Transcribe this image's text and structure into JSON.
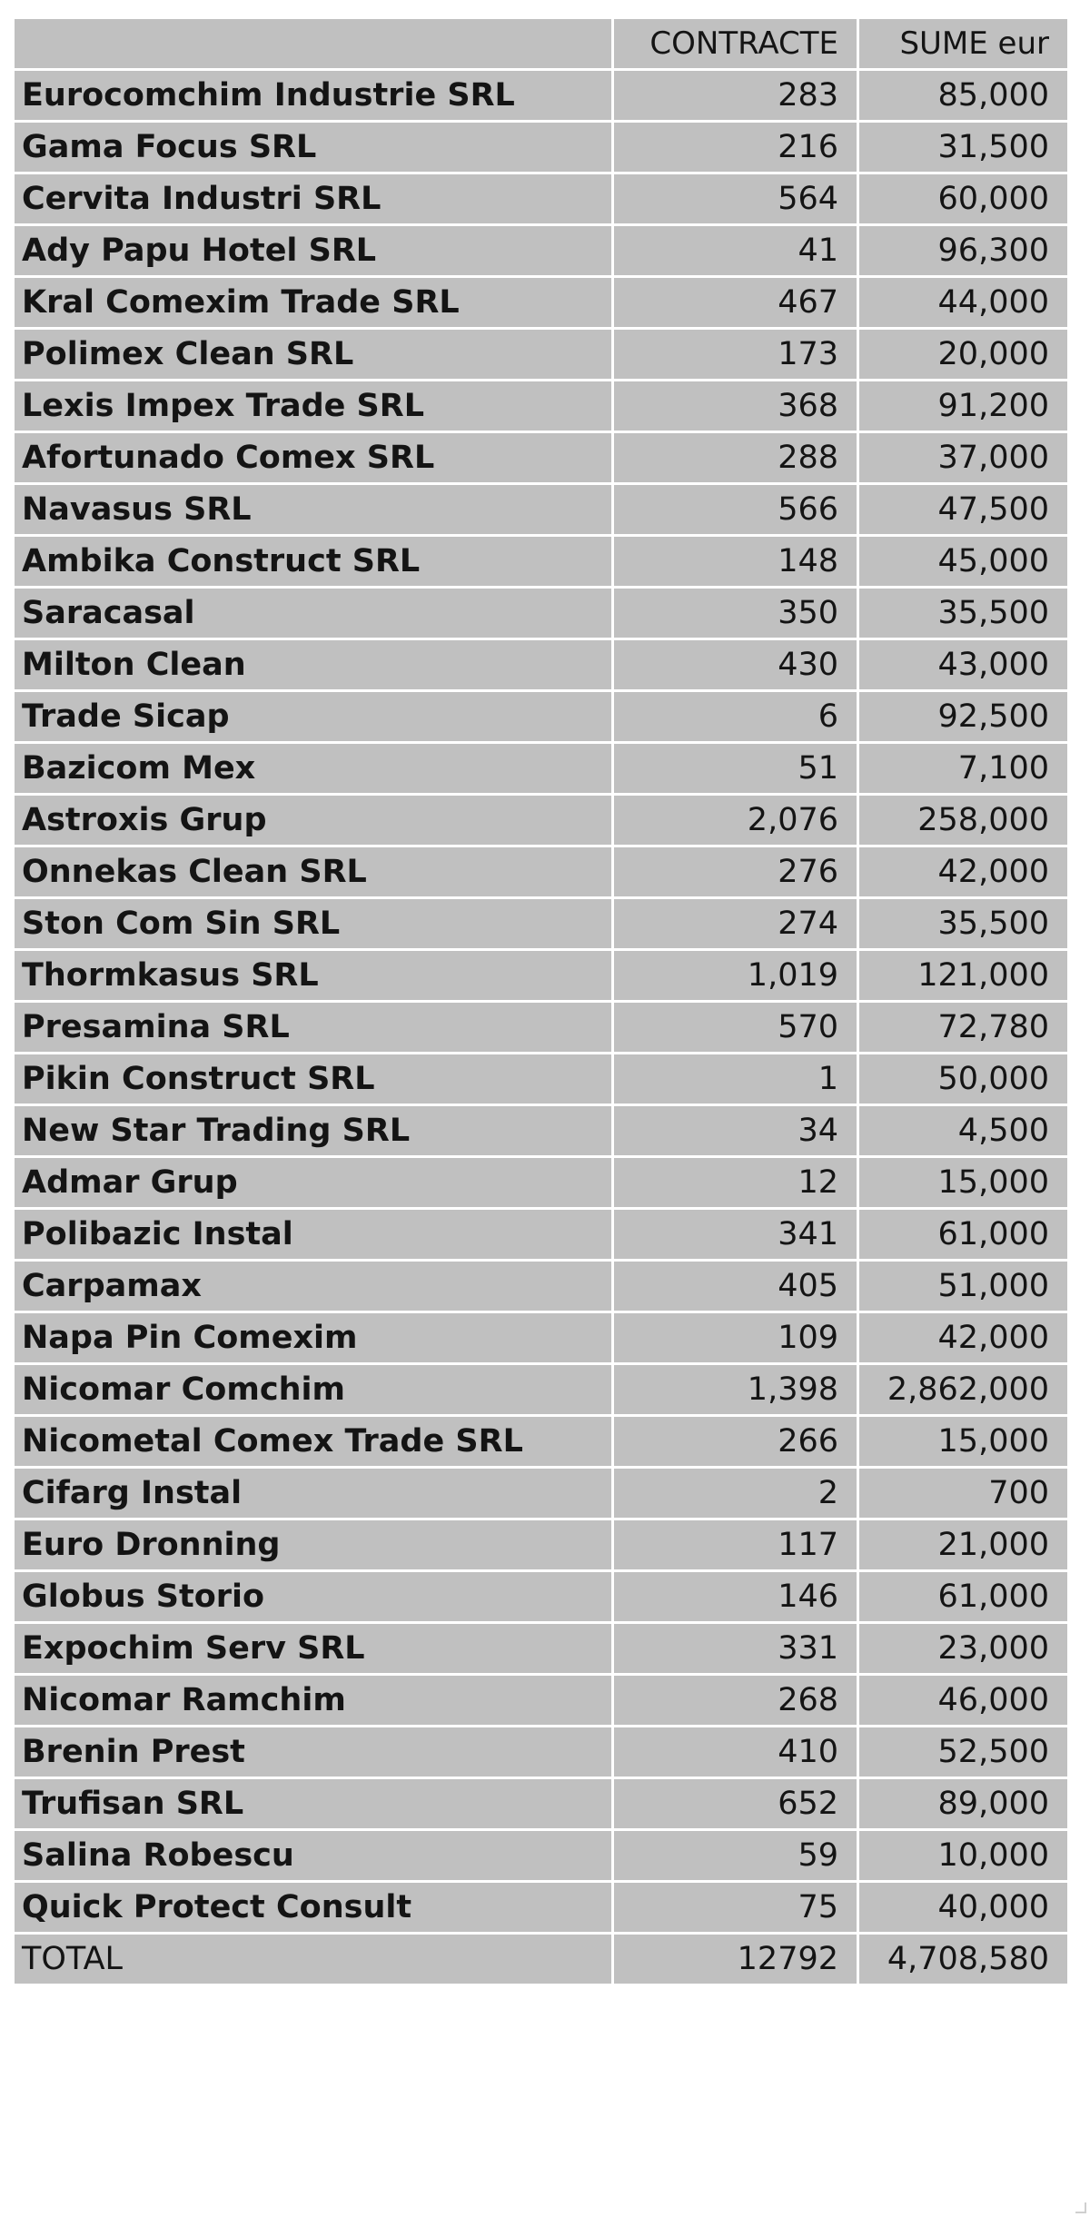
{
  "table": {
    "headers": {
      "name": "",
      "contracts": "CONTRACTE",
      "sums": "SUME eur"
    },
    "rows": [
      {
        "name": "Eurocomchim Industrie SRL",
        "contracts": "283",
        "sums": "85,000"
      },
      {
        "name": "Gama Focus SRL",
        "contracts": "216",
        "sums": "31,500"
      },
      {
        "name": "Cervita Industri SRL",
        "contracts": "564",
        "sums": "60,000"
      },
      {
        "name": "Ady Papu Hotel SRL",
        "contracts": "41",
        "sums": "96,300"
      },
      {
        "name": "Kral Comexim Trade SRL",
        "contracts": "467",
        "sums": "44,000"
      },
      {
        "name": "Polimex Clean SRL",
        "contracts": "173",
        "sums": "20,000"
      },
      {
        "name": "Lexis Impex Trade SRL",
        "contracts": "368",
        "sums": "91,200"
      },
      {
        "name": "Afortunado Comex SRL",
        "contracts": "288",
        "sums": "37,000"
      },
      {
        "name": "Navasus SRL",
        "contracts": "566",
        "sums": "47,500"
      },
      {
        "name": "Ambika Construct SRL",
        "contracts": "148",
        "sums": "45,000"
      },
      {
        "name": "Saracasal",
        "contracts": "350",
        "sums": "35,500"
      },
      {
        "name": "Milton Clean",
        "contracts": "430",
        "sums": "43,000"
      },
      {
        "name": "Trade Sicap",
        "contracts": "6",
        "sums": "92,500"
      },
      {
        "name": "Bazicom Mex",
        "contracts": "51",
        "sums": "7,100"
      },
      {
        "name": "Astroxis Grup",
        "contracts": "2,076",
        "sums": "258,000"
      },
      {
        "name": "Onnekas Clean SRL",
        "contracts": "276",
        "sums": "42,000"
      },
      {
        "name": "Ston Com Sin SRL",
        "contracts": "274",
        "sums": "35,500"
      },
      {
        "name": "Thormkasus SRL",
        "contracts": "1,019",
        "sums": "121,000"
      },
      {
        "name": "Presamina SRL",
        "contracts": "570",
        "sums": "72,780"
      },
      {
        "name": "Pikin Construct SRL",
        "contracts": "1",
        "sums": "50,000"
      },
      {
        "name": "New Star Trading SRL",
        "contracts": "34",
        "sums": "4,500"
      },
      {
        "name": "Admar Grup",
        "contracts": "12",
        "sums": "15,000"
      },
      {
        "name": "Polibazic Instal",
        "contracts": "341",
        "sums": "61,000"
      },
      {
        "name": "Carpamax",
        "contracts": "405",
        "sums": "51,000"
      },
      {
        "name": "Napa Pin Comexim",
        "contracts": "109",
        "sums": "42,000"
      },
      {
        "name": "Nicomar Comchim",
        "contracts": "1,398",
        "sums": "2,862,000"
      },
      {
        "name": "Nicometal Comex Trade SRL",
        "contracts": "266",
        "sums": "15,000"
      },
      {
        "name": "Cifarg Instal",
        "contracts": "2",
        "sums": "700"
      },
      {
        "name": "Euro Dronning",
        "contracts": "117",
        "sums": "21,000"
      },
      {
        "name": "Globus Storio",
        "contracts": "146",
        "sums": "61,000"
      },
      {
        "name": "Expochim Serv SRL",
        "contracts": "331",
        "sums": "23,000"
      },
      {
        "name": "Nicomar Ramchim",
        "contracts": "268",
        "sums": "46,000"
      },
      {
        "name": "Brenin Prest",
        "contracts": "410",
        "sums": "52,500"
      },
      {
        "name": "Trufisan SRL",
        "contracts": "652",
        "sums": "89,000"
      },
      {
        "name": "Salina Robescu",
        "contracts": "59",
        "sums": "10,000"
      },
      {
        "name": "Quick Protect Consult",
        "contracts": "75",
        "sums": "40,000"
      }
    ],
    "total": {
      "label": "TOTAL",
      "contracts": "12792",
      "sums": "4,708,580"
    }
  }
}
